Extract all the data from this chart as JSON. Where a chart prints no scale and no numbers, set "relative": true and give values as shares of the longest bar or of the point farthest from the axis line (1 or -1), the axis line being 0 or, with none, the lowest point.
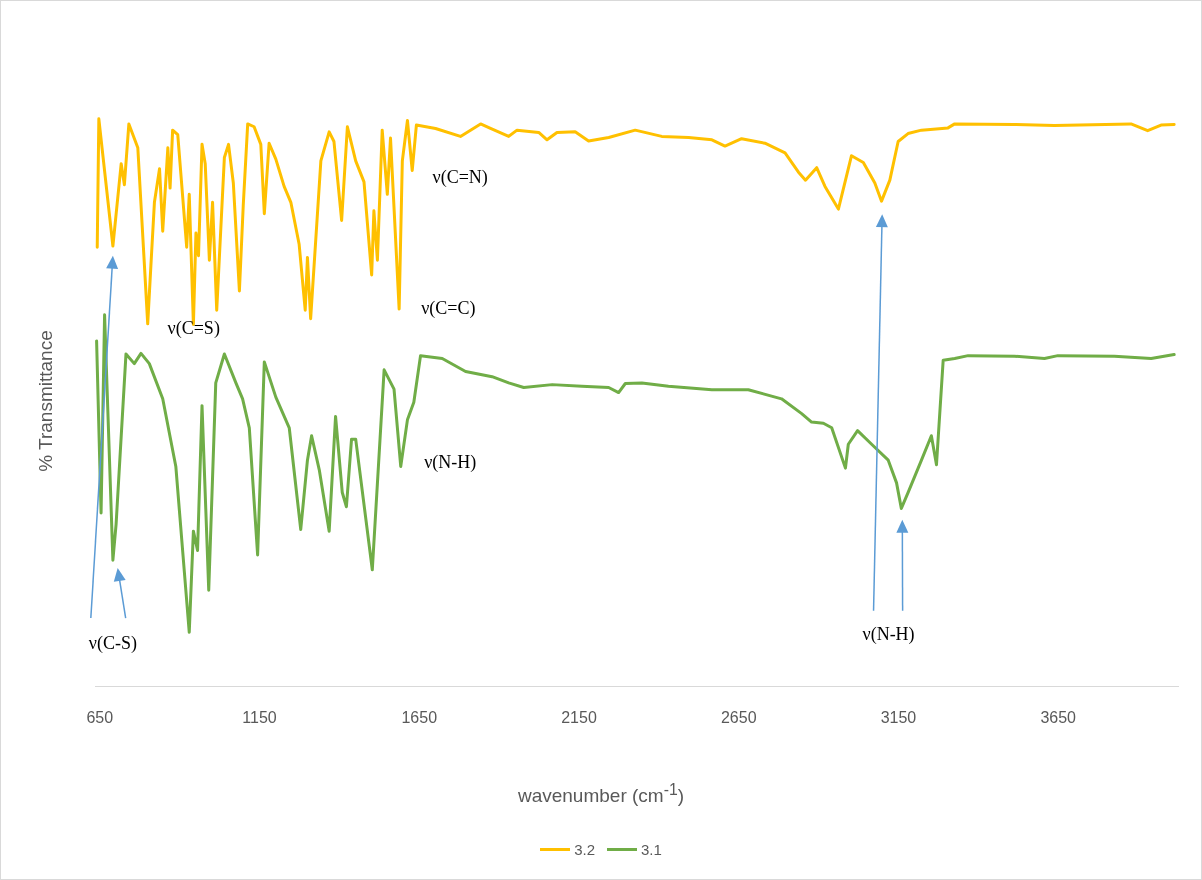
{
  "chart_data": {
    "type": "line",
    "xlabel": "wavenumber (cm$^{-1}$)",
    "ylabel": "% Transmittance",
    "relative": true,
    "xlim": [
      635,
      4025
    ],
    "xticks": [
      650,
      1150,
      1650,
      2150,
      2650,
      3150,
      3650
    ],
    "legend": "bottom",
    "grid": false,
    "marker": "none",
    "line_style": "solid",
    "series": [
      {
        "name": "3.2",
        "color": "#ffc000",
        "x": [
          642,
          647,
          691,
          717,
          727,
          741,
          769,
          800,
          810,
          821,
          837,
          847,
          863,
          870,
          878,
          894,
          922,
          930,
          943,
          951,
          959,
          970,
          980,
          993,
          1003,
          1016,
          1040,
          1053,
          1068,
          1087,
          1099,
          1113,
          1133,
          1154,
          1165,
          1180,
          1201,
          1227,
          1248,
          1274,
          1293,
          1300,
          1310,
          1342,
          1368,
          1383,
          1407,
          1425,
          1451,
          1477,
          1501,
          1508,
          1519,
          1534,
          1550,
          1560,
          1587,
          1597,
          1613,
          1628,
          1641,
          1701,
          1779,
          1842,
          1873,
          1930,
          1956,
          2024,
          2050,
          2081,
          2138,
          2180,
          2243,
          2326,
          2409,
          2493,
          2566,
          2607,
          2659,
          2732,
          2795,
          2837,
          2859,
          2894,
          2920,
          2962,
          3003,
          3040,
          3076,
          3097,
          3123,
          3149,
          3180,
          3222,
          3305,
          3326,
          3513,
          3638,
          3878,
          3930,
          3972,
          4013
        ],
        "values": [
          0.774,
          1.0,
          0.776,
          0.921,
          0.884,
          0.991,
          0.949,
          0.639,
          0.742,
          0.853,
          0.912,
          0.802,
          0.949,
          0.878,
          0.98,
          0.972,
          0.774,
          0.867,
          0.638,
          0.799,
          0.759,
          0.955,
          0.921,
          0.751,
          0.853,
          0.663,
          0.932,
          0.955,
          0.887,
          0.697,
          0.847,
          0.991,
          0.986,
          0.955,
          0.833,
          0.957,
          0.929,
          0.881,
          0.853,
          0.779,
          0.663,
          0.756,
          0.648,
          0.926,
          0.977,
          0.96,
          0.821,
          0.986,
          0.926,
          0.889,
          0.725,
          0.838,
          0.751,
          0.98,
          0.867,
          0.966,
          0.665,
          0.926,
          0.997,
          0.909,
          0.989,
          0.983,
          0.969,
          0.991,
          0.983,
          0.969,
          0.98,
          0.976,
          0.963,
          0.976,
          0.977,
          0.961,
          0.967,
          0.98,
          0.969,
          0.967,
          0.963,
          0.952,
          0.965,
          0.957,
          0.94,
          0.906,
          0.892,
          0.914,
          0.881,
          0.841,
          0.935,
          0.923,
          0.887,
          0.855,
          0.892,
          0.96,
          0.974,
          0.98,
          0.984,
          0.991,
          0.99,
          0.988,
          0.991,
          0.979,
          0.989,
          0.99
        ]
      },
      {
        "name": "3.1",
        "color": "#70ad47",
        "x": [
          640,
          654,
          665,
          691,
          701,
          732,
          758,
          779,
          805,
          847,
          888,
          930,
          943,
          956,
          970,
          991,
          1013,
          1040,
          1076,
          1097,
          1118,
          1144,
          1165,
          1201,
          1243,
          1279,
          1300,
          1313,
          1337,
          1368,
          1388,
          1409,
          1422,
          1438,
          1451,
          1503,
          1540,
          1571,
          1592,
          1613,
          1633,
          1654,
          1722,
          1795,
          1878,
          1930,
          1977,
          2066,
          2159,
          2243,
          2274,
          2295,
          2347,
          2430,
          2566,
          2680,
          2784,
          2847,
          2878,
          2915,
          2941,
          2984,
          2993,
          3022,
          3066,
          3118,
          3144,
          3159,
          3180,
          3222,
          3253,
          3269,
          3290,
          3326,
          3368,
          3513,
          3607,
          3649,
          3826,
          3941,
          4013
        ],
        "values": [
          0.609,
          0.306,
          0.655,
          0.223,
          0.286,
          0.586,
          0.569,
          0.587,
          0.569,
          0.507,
          0.388,
          0.096,
          0.274,
          0.24,
          0.495,
          0.17,
          0.535,
          0.586,
          0.535,
          0.507,
          0.456,
          0.232,
          0.572,
          0.51,
          0.456,
          0.277,
          0.399,
          0.442,
          0.382,
          0.274,
          0.476,
          0.342,
          0.317,
          0.436,
          0.436,
          0.206,
          0.558,
          0.524,
          0.388,
          0.47,
          0.501,
          0.583,
          0.578,
          0.555,
          0.546,
          0.535,
          0.527,
          0.532,
          0.529,
          0.527,
          0.518,
          0.534,
          0.535,
          0.529,
          0.523,
          0.523,
          0.507,
          0.481,
          0.466,
          0.464,
          0.456,
          0.385,
          0.427,
          0.451,
          0.427,
          0.399,
          0.359,
          0.314,
          0.342,
          0.399,
          0.442,
          0.391,
          0.575,
          0.578,
          0.583,
          0.582,
          0.578,
          0.583,
          0.582,
          0.578,
          0.585
        ]
      }
    ],
    "annotations": [
      "ν(C=N)",
      "ν(C=S)",
      "ν(C=C)",
      "ν(N-H)",
      "ν(C-S)",
      "ν(N-H)"
    ]
  }
}
